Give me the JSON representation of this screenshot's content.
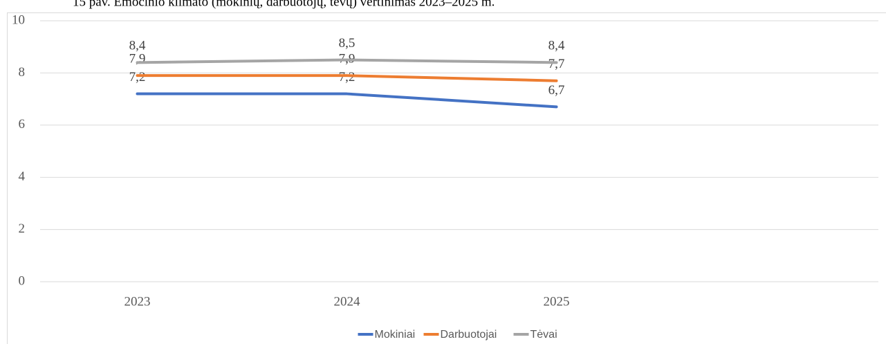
{
  "chart_data": {
    "type": "line",
    "title": "15 pav. Emocinio klimato (mokinių, darbuotojų, tėvų) vertinimas 2023–2025 m.",
    "categories": [
      "2023",
      "2024",
      "2025",
      null
    ],
    "series": [
      {
        "name": "Mokiniai",
        "color": "#4472c4",
        "values": [
          7.2,
          7.2,
          6.7,
          null
        ],
        "value_labels": [
          "7,2",
          "7,2",
          "6,7",
          null
        ]
      },
      {
        "name": "Darbuotojai",
        "color": "#ed7d31",
        "values": [
          7.9,
          7.9,
          7.7,
          null
        ],
        "value_labels": [
          "7,9",
          "7,9",
          "7,7",
          null
        ]
      },
      {
        "name": "Tėvai",
        "color": "#a5a5a5",
        "values": [
          8.4,
          8.5,
          8.4,
          null
        ],
        "value_labels": [
          "8,4",
          "8,5",
          "8,4",
          null
        ]
      }
    ],
    "ylim": [
      0,
      10
    ],
    "yticks": [
      0,
      2,
      4,
      6,
      8,
      10
    ],
    "grid": true,
    "legend": "bottom"
  }
}
